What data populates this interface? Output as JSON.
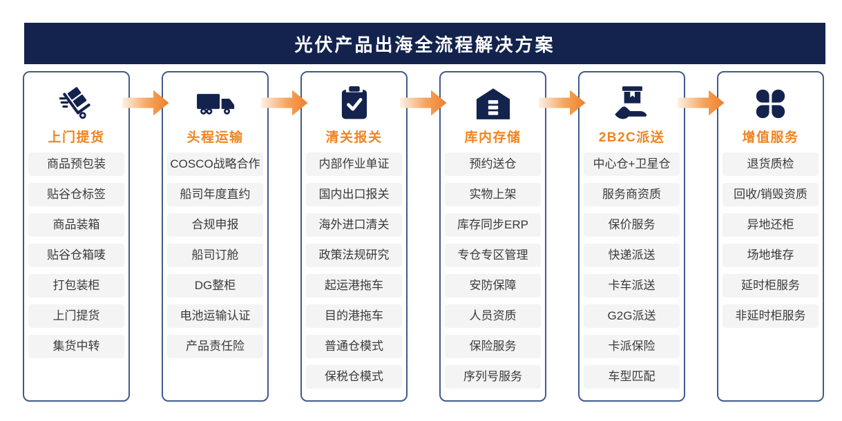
{
  "header": {
    "title": "光伏产品出海全流程解决方案"
  },
  "colors": {
    "navy": "#13234d",
    "accent_orange": "#f0831e",
    "column_border": "#41598b",
    "pill_background": "#f4f4f4",
    "pill_text": "#3a3a3a",
    "arrow_gradient_start": "#fdf1e4",
    "arrow_gradient_end": "#ee7f2b"
  },
  "columns": [
    {
      "icon": "hand-truck-icon",
      "title": "上门提货",
      "items": [
        "商品预包装",
        "贴谷仓标签",
        "商品装箱",
        "贴谷仓箱唛",
        "打包装柜",
        "上门提货",
        "集货中转"
      ]
    },
    {
      "icon": "truck-icon",
      "title": "头程运输",
      "items": [
        "COSCO战略合作",
        "船司年度直约",
        "合规申报",
        "船司订舱",
        "DG整柜",
        "电池运输认证",
        "产品责任险"
      ]
    },
    {
      "icon": "clipboard-check-icon",
      "title": "清关报关",
      "items": [
        "内部作业单证",
        "国内出口报关",
        "海外进口清关",
        "政策法规研究",
        "起运港拖车",
        "目的港拖车",
        "普通仓模式",
        "保税仓模式"
      ]
    },
    {
      "icon": "warehouse-icon",
      "title": "库内存储",
      "items": [
        "预约送仓",
        "实物上架",
        "库存同步ERP",
        "专仓专区管理",
        "安防保障",
        "人员资质",
        "保险服务",
        "序列号服务"
      ]
    },
    {
      "icon": "hand-holding-box-icon",
      "title": "2B2C派送",
      "items": [
        "中心仓+卫星仓",
        "服务商资质",
        "保价服务",
        "快递派送",
        "卡车派送",
        "G2G派送",
        "卡派保险",
        "车型匹配"
      ]
    },
    {
      "icon": "clover-icon",
      "title": "增值服务",
      "items": [
        "退货质检",
        "回收/销毁资质",
        "异地还柜",
        "场地堆存",
        "延时柜服务",
        "非延时柜服务"
      ]
    }
  ]
}
